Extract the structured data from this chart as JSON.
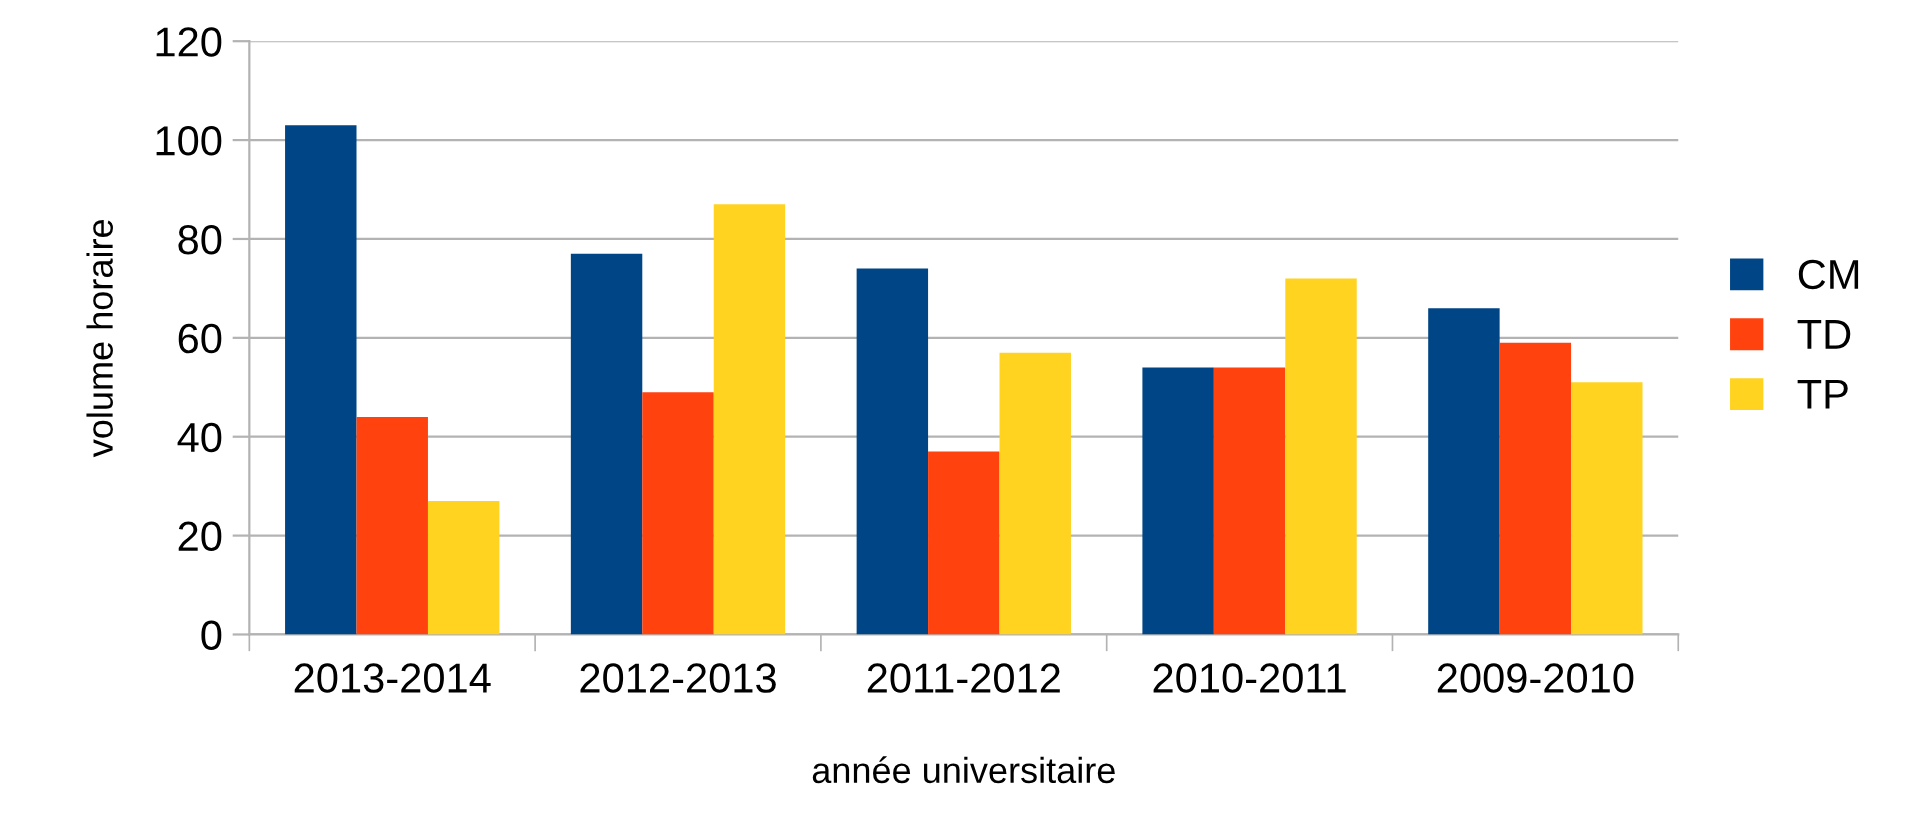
{
  "chart_data": {
    "type": "bar",
    "xlabel": "année universitaire",
    "ylabel": "volume horaire",
    "categories": [
      "2013-2014",
      "2012-2013",
      "2011-2012",
      "2010-2011",
      "2009-2010"
    ],
    "series": [
      {
        "name": "CM",
        "color": "#004586",
        "values": [
          103,
          77,
          74,
          54,
          66
        ]
      },
      {
        "name": "TD",
        "color": "#ff420e",
        "values": [
          44,
          49,
          37,
          54,
          59
        ]
      },
      {
        "name": "TP",
        "color": "#ffd320",
        "values": [
          27,
          87,
          57,
          72,
          51
        ]
      }
    ],
    "ylim": [
      0,
      120
    ],
    "yticks": [
      0,
      20,
      40,
      60,
      80,
      100,
      120
    ],
    "grid": "y",
    "legend": "right"
  }
}
